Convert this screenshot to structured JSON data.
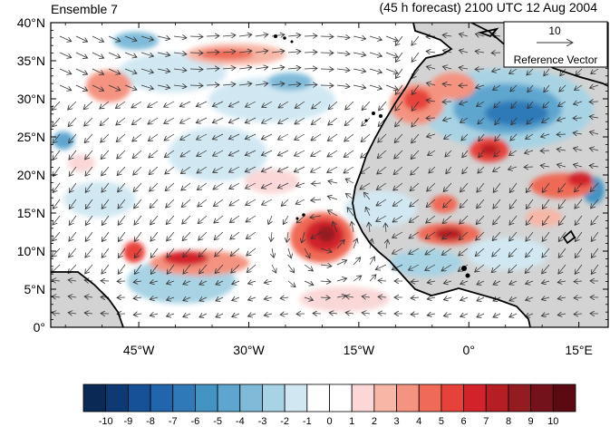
{
  "header": {
    "left_title": "Ensemble 7",
    "right_title": "(45 h forecast) 2100 UTC 12 Aug 2004"
  },
  "map": {
    "lon_range": [
      -57,
      19
    ],
    "lat_range": [
      0,
      40
    ],
    "y_ticks": [
      "0°",
      "5°N",
      "10°N",
      "15°N",
      "20°N",
      "25°N",
      "30°N",
      "35°N",
      "40°N"
    ],
    "x_ticks": [
      "45°W",
      "30°W",
      "15°W",
      "0°",
      "15°E"
    ],
    "land_color": "#d3d3d3",
    "coast_color": "#000000"
  },
  "reference_vector": {
    "value": "10",
    "label": "Reference Vector"
  },
  "colorbar": {
    "labels": [
      "-10",
      "-9",
      "-8",
      "-7",
      "-6",
      "-5",
      "-4",
      "-3",
      "-2",
      "-1",
      "0",
      "1",
      "2",
      "3",
      "4",
      "5",
      "6",
      "7",
      "8",
      "9",
      "10"
    ],
    "colors": [
      "#0a2a55",
      "#0d3a75",
      "#165096",
      "#2166ac",
      "#2f79b8",
      "#4393c3",
      "#5ea6cf",
      "#7fbbd9",
      "#a7d3e4",
      "#d1e8f3",
      "#ffffff",
      "#ffffff",
      "#fbd7d7",
      "#f7b6a6",
      "#f4937f",
      "#ef6b57",
      "#e7423a",
      "#d2232a",
      "#b51f24",
      "#931c20",
      "#75111a",
      "#5a0a10"
    ]
  }
}
